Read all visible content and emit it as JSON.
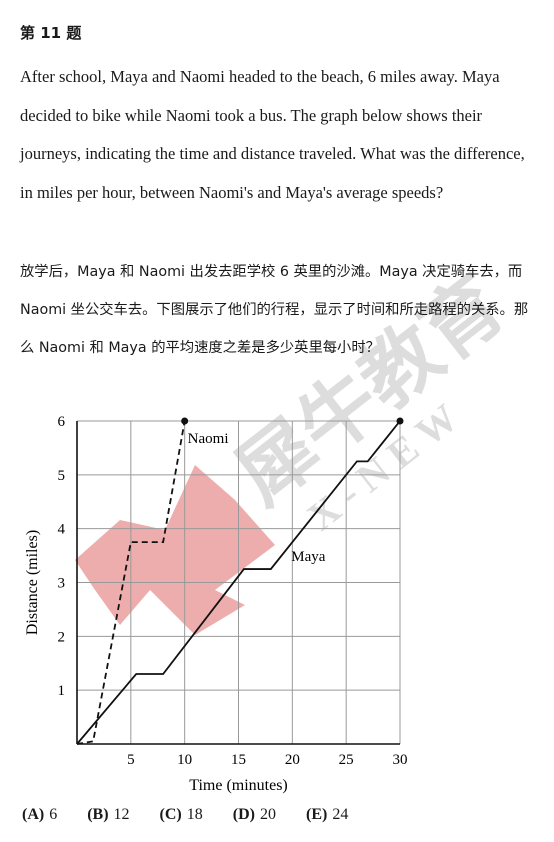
{
  "question": {
    "number": "第 11 题",
    "text_en": "After school, Maya and Naomi headed to the beach, 6 miles away. Maya decided to bike while Naomi took a bus. The graph below shows their journeys, indicating the time and distance traveled. What was the difference, in miles per hour, between Naomi's and Maya's average speeds?",
    "text_zh": "放学后，Maya 和 Naomi 出发去距学校 6 英里的沙滩。Maya 决定骑车去，而 Naomi 坐公交车去。下图展示了他们的行程，显示了时间和所走路程的关系。那么 Naomi 和 Maya 的平均速度之差是多少英里每小时？"
  },
  "chart_data": {
    "type": "line",
    "xlabel": "Time (minutes)",
    "ylabel": "Distance (miles)",
    "xlim": [
      0,
      30
    ],
    "ylim": [
      0,
      6
    ],
    "x_ticks": [
      5,
      10,
      15,
      20,
      25,
      30
    ],
    "y_ticks": [
      1,
      2,
      3,
      4,
      5,
      6
    ],
    "grid": true,
    "series": [
      {
        "name": "Naomi",
        "style": "dashed",
        "points": [
          [
            0,
            0
          ],
          [
            1.5,
            0.05
          ],
          [
            5,
            3.75
          ],
          [
            8,
            3.75
          ],
          [
            10,
            6
          ]
        ]
      },
      {
        "name": "Maya",
        "style": "solid",
        "points": [
          [
            0,
            0
          ],
          [
            5.5,
            1.3
          ],
          [
            8,
            1.3
          ],
          [
            15.5,
            3.25
          ],
          [
            18,
            3.25
          ],
          [
            26,
            5.25
          ],
          [
            27,
            5.25
          ],
          [
            30,
            6
          ]
        ]
      }
    ]
  },
  "choices": [
    {
      "label": "(A)",
      "value": "6"
    },
    {
      "label": "(B)",
      "value": "12"
    },
    {
      "label": "(C)",
      "value": "18"
    },
    {
      "label": "(D)",
      "value": "20"
    },
    {
      "label": "(E)",
      "value": "24"
    }
  ],
  "watermark": {
    "text": "犀牛教育",
    "subtext": "X - N E W",
    "color": "#e06a6a"
  }
}
